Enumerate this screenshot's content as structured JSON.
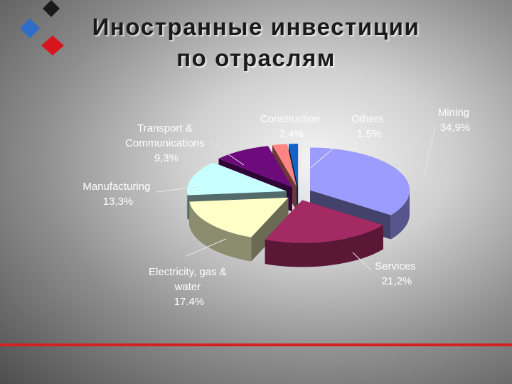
{
  "title_lines": [
    "Иностранные инвестиции",
    "по отраслям"
  ],
  "colors": {
    "logo_black": "#1a1a1a",
    "logo_blue": "#2e6ec8",
    "logo_red": "#d8141c",
    "rule": "#d52020"
  },
  "chart_data": {
    "type": "pie",
    "style": "3d-exploded",
    "title": "",
    "slices": [
      {
        "label_lines": [
          "Mining",
          "34,9%"
        ],
        "value": 34.9,
        "color": "#9c9cff"
      },
      {
        "label_lines": [
          "Services",
          "21,2%"
        ],
        "value": 21.2,
        "color": "#a32a62"
      },
      {
        "label_lines": [
          "Electricity, gas &",
          "water",
          "17.4%"
        ],
        "value": 17.4,
        "color": "#ffffc8"
      },
      {
        "label_lines": [
          "Manufacturing",
          "13,3%"
        ],
        "value": 13.3,
        "color": "#c8ffff"
      },
      {
        "label_lines": [
          "Transport &",
          "Communications",
          "9,3%"
        ],
        "value": 9.3,
        "color": "#6e0b7c"
      },
      {
        "label_lines": [
          "Construction",
          "2.4%"
        ],
        "value": 2.4,
        "color": "#ff8484"
      },
      {
        "label_lines": [
          "Others",
          "1.5%"
        ],
        "value": 1.5,
        "color": "#1464c8"
      }
    ],
    "legend": "none"
  }
}
